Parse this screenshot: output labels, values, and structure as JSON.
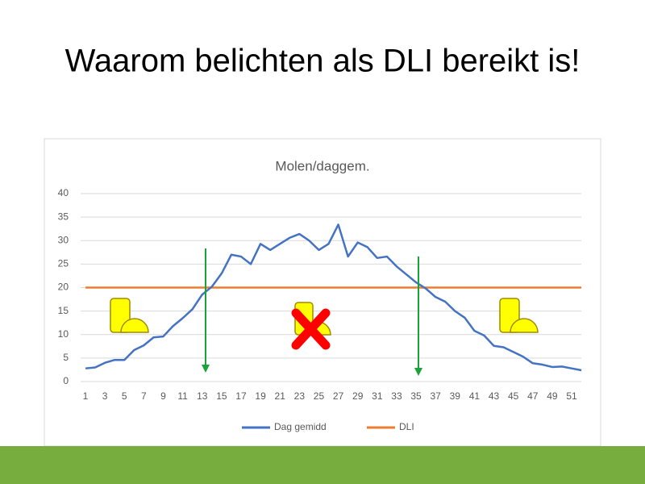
{
  "slide_title": "Waarom belichten als DLI bereikt is!",
  "chart_data": {
    "type": "line",
    "title": "Molen/daggem.",
    "categories": [
      1,
      null,
      3,
      null,
      5,
      null,
      7,
      null,
      9,
      null,
      11,
      null,
      13,
      null,
      15,
      null,
      17,
      null,
      19,
      null,
      21,
      null,
      23,
      null,
      25,
      null,
      27,
      null,
      29,
      null,
      31,
      null,
      33,
      null,
      35,
      null,
      37,
      null,
      39,
      null,
      41,
      null,
      43,
      null,
      45,
      null,
      47,
      null,
      49,
      null,
      51,
      null
    ],
    "series": [
      {
        "name": "Dag gemidd",
        "color": "#4472c4",
        "values": [
          2.8,
          3,
          4,
          4.6,
          4.6,
          6.7,
          7.7,
          9.4,
          9.6,
          11.8,
          13.5,
          15.4,
          18.5,
          20.2,
          23,
          27,
          26.6,
          25,
          29.3,
          28,
          29.3,
          30.6,
          31.4,
          30,
          28,
          29.3,
          33.4,
          26.6,
          29.6,
          28.6,
          26.3,
          26.6,
          24.5,
          22.8,
          21.1,
          19.8,
          18,
          17,
          15,
          13.6,
          10.8,
          9.8,
          7.6,
          7.3,
          6.3,
          5.3,
          3.9,
          3.6,
          3.1,
          3.2,
          2.8,
          2.4
        ]
      },
      {
        "name": "DLI",
        "color": "#ed7d31",
        "values": [
          20,
          20,
          20,
          20,
          20,
          20,
          20,
          20,
          20,
          20,
          20,
          20,
          20,
          20,
          20,
          20,
          20,
          20,
          20,
          20,
          20,
          20,
          20,
          20,
          20,
          20,
          20,
          20,
          20,
          20,
          20,
          20,
          20,
          20,
          20,
          20,
          20,
          20,
          20,
          20,
          20,
          20,
          20,
          20,
          20,
          20,
          20,
          20,
          20,
          20,
          20,
          20
        ]
      }
    ],
    "ylim": [
      0,
      40
    ],
    "yticks": [
      0,
      5,
      10,
      15,
      20,
      25,
      30,
      35,
      40
    ],
    "grid": true,
    "legend": "bottom"
  }
}
